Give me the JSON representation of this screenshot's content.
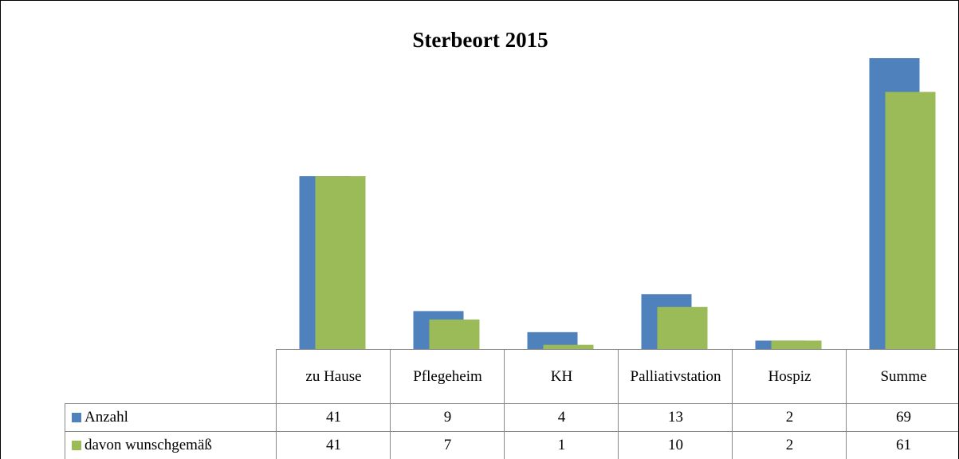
{
  "chart_data": {
    "type": "bar",
    "title": "Sterbeort 2015",
    "categories": [
      "zu Hause",
      "Pflegeheim",
      "KH",
      "Palliativstation",
      "Hospiz",
      "Summe"
    ],
    "series": [
      {
        "name": "Anzahl",
        "color": "#4f81bd",
        "values": [
          41,
          9,
          4,
          13,
          2,
          69
        ]
      },
      {
        "name": "davon wunschgemäß",
        "color": "#9bbb59",
        "values": [
          41,
          7,
          1,
          10,
          2,
          61
        ]
      }
    ]
  }
}
